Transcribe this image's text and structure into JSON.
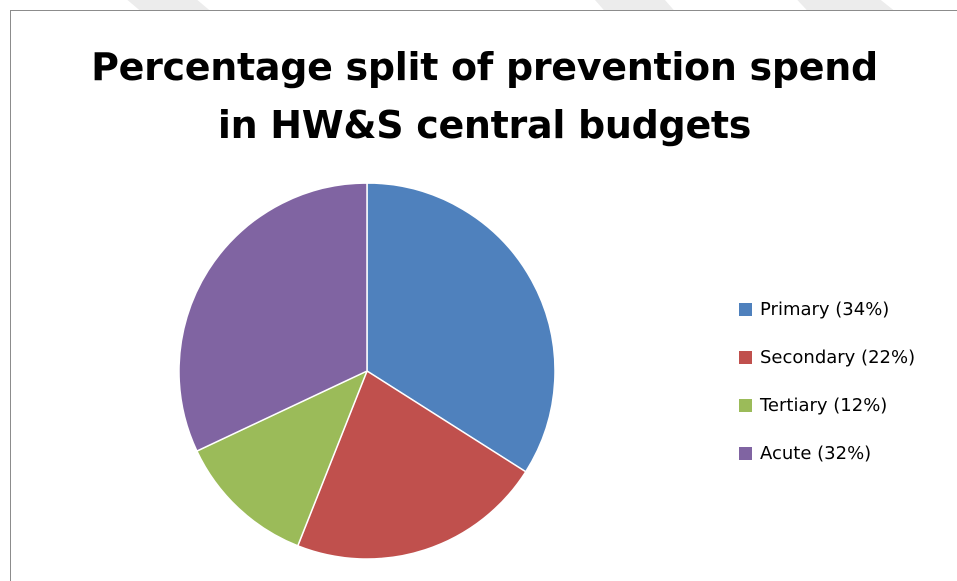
{
  "colors": {
    "primary": "#4F81BD",
    "secondary": "#C0504D",
    "tertiary": "#9BBB59",
    "acute": "#8064A2"
  },
  "chart_data": {
    "type": "pie",
    "title": [
      "Percentage split of prevention spend",
      "in HW&S central budgets"
    ],
    "start_angle": "12 o'clock",
    "direction": "clockwise",
    "legend_position": "right",
    "slices": [
      {
        "label": "Primary (34%)",
        "value": 34,
        "color": "#4F81BD"
      },
      {
        "label": "Secondary (22%)",
        "value": 22,
        "color": "#C0504D"
      },
      {
        "label": "Tertiary (12%)",
        "value": 12,
        "color": "#9BBB59"
      },
      {
        "label": "Acute (32%)",
        "value": 32,
        "color": "#8064A2"
      }
    ]
  }
}
